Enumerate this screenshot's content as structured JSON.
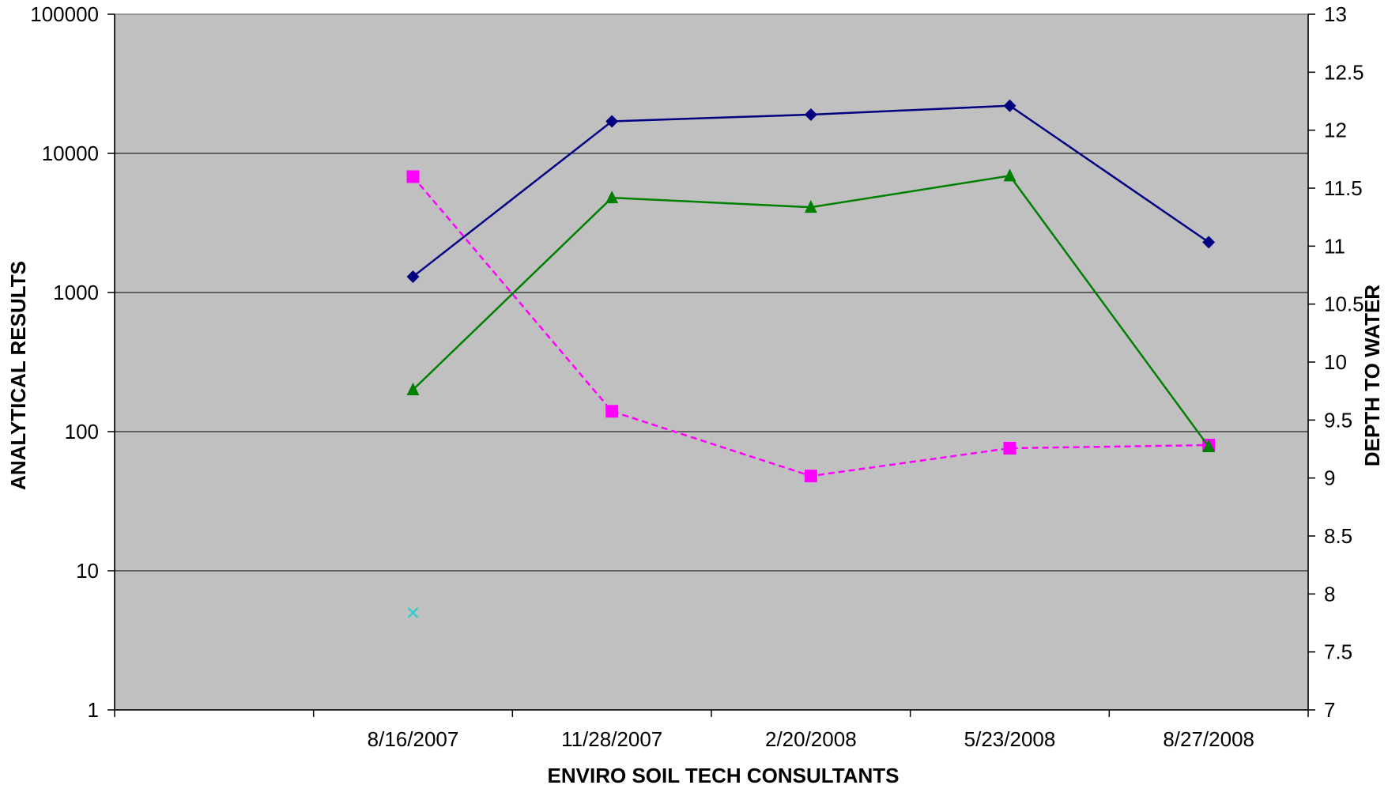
{
  "chart_data": {
    "type": "line",
    "title": "",
    "xlabel": "ENVIRO SOIL TECH CONSULTANTS",
    "ylabel": "ANALYTICAL RESULTS",
    "y2label": "DEPTH TO WATER",
    "y_scale": "log",
    "ylim": [
      1,
      100000
    ],
    "y_ticks": [
      "1",
      "10",
      "100",
      "1000",
      "10000",
      "100000"
    ],
    "y2lim": [
      7,
      13
    ],
    "y2_ticks": [
      "7",
      "7.5",
      "8",
      "8.5",
      "9",
      "9.5",
      "10",
      "10.5",
      "11",
      "11.5",
      "12",
      "12.5",
      "13"
    ],
    "categories": [
      "",
      "8/16/2007",
      "11/28/2007",
      "2/20/2008",
      "5/23/2008",
      "8/27/2008"
    ],
    "grid": "horizontal major gridlines",
    "plot_background": "#C0C0C0",
    "series": [
      {
        "axis": "left",
        "color": "#000080",
        "marker": "diamond",
        "line": "solid",
        "values": [
          null,
          1300,
          17000,
          19000,
          22000,
          2300
        ]
      },
      {
        "axis": "left",
        "color": "#FF00FF",
        "marker": "square",
        "line": "dashed",
        "values": [
          null,
          6800,
          140,
          48,
          76,
          80
        ]
      },
      {
        "axis": "left",
        "color": "#008000",
        "marker": "triangle",
        "line": "solid",
        "values": [
          null,
          200,
          4800,
          4100,
          6900,
          78
        ]
      },
      {
        "axis": "left",
        "color": "#33CCCC",
        "marker": "x",
        "line": "none",
        "values": [
          null,
          5,
          null,
          null,
          null,
          null
        ]
      }
    ]
  }
}
